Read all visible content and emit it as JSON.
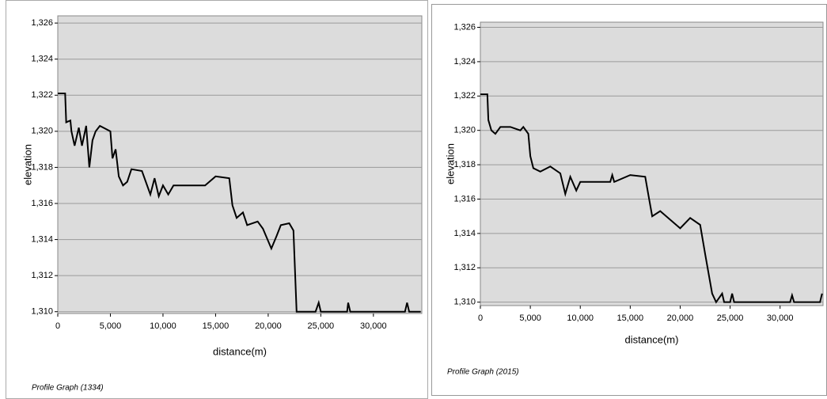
{
  "chart_data": [
    {
      "type": "line",
      "y_label": "elevation",
      "x_label": "distance(m)",
      "caption": "Profile Graph (1334)",
      "color": "#000000",
      "grid": true,
      "xlim": [
        0,
        34600
      ],
      "ylim": [
        1309.9,
        1326.4
      ],
      "xticks": [
        0,
        {
          "value": 5000,
          "label": "5,000"
        },
        {
          "value": 10000,
          "label": "10,000"
        },
        {
          "value": 15000,
          "label": "15,000"
        },
        {
          "value": 20000,
          "label": "20,000"
        },
        {
          "value": 25000,
          "label": "25,000"
        },
        {
          "value": 30000,
          "label": "30,000"
        }
      ],
      "yticks": [
        {
          "value": 1310,
          "label": "1,310"
        },
        {
          "value": 1312,
          "label": "1,312"
        },
        {
          "value": 1314,
          "label": "1,314"
        },
        {
          "value": 1316,
          "label": "1,316"
        },
        {
          "value": 1318,
          "label": "1,318"
        },
        {
          "value": 1320,
          "label": "1,320"
        },
        {
          "value": 1322,
          "label": "1,322"
        },
        {
          "value": 1324,
          "label": "1,324"
        },
        {
          "value": 1326,
          "label": "1,326"
        }
      ],
      "x": [
        0,
        700,
        800,
        1200,
        1300,
        1600,
        2000,
        2300,
        2700,
        3000,
        3300,
        3600,
        4000,
        5000,
        5200,
        5500,
        5800,
        6200,
        6600,
        7000,
        8000,
        8800,
        9200,
        9600,
        10000,
        10500,
        11000,
        14000,
        15000,
        16300,
        16600,
        17000,
        17600,
        18000,
        19000,
        19500,
        20300,
        20800,
        21200,
        22000,
        22400,
        22700,
        24500,
        24800,
        25000,
        27500,
        27600,
        27800,
        33000,
        33200,
        33400,
        34500
      ],
      "values": [
        1322.1,
        1322.1,
        1320.5,
        1320.6,
        1320.0,
        1319.2,
        1320.2,
        1319.2,
        1320.3,
        1318.0,
        1319.5,
        1320.0,
        1320.3,
        1320.0,
        1318.5,
        1319.0,
        1317.5,
        1317.0,
        1317.2,
        1317.9,
        1317.8,
        1316.5,
        1317.4,
        1316.4,
        1317.0,
        1316.5,
        1317.0,
        1317.0,
        1317.5,
        1317.4,
        1315.9,
        1315.2,
        1315.5,
        1314.8,
        1315.0,
        1314.6,
        1313.5,
        1314.2,
        1314.8,
        1314.9,
        1314.5,
        1310.0,
        1310.0,
        1310.5,
        1310.0,
        1310.0,
        1310.5,
        1310.0,
        1310.0,
        1310.5,
        1310.0,
        1310.0
      ]
    },
    {
      "type": "line",
      "y_label": "elevation",
      "x_label": "distance(m)",
      "caption": "Profile Graph (2015)",
      "color": "#000000",
      "grid": true,
      "xlim": [
        0,
        34300
      ],
      "ylim": [
        1309.8,
        1326.3
      ],
      "xticks": [
        0,
        {
          "value": 5000,
          "label": "5,000"
        },
        {
          "value": 10000,
          "label": "10,000"
        },
        {
          "value": 15000,
          "label": "15,000"
        },
        {
          "value": 20000,
          "label": "20,000"
        },
        {
          "value": 25000,
          "label": "25,000"
        },
        {
          "value": 30000,
          "label": "30,000"
        }
      ],
      "yticks": [
        {
          "value": 1310,
          "label": "1,310"
        },
        {
          "value": 1312,
          "label": "1,312"
        },
        {
          "value": 1314,
          "label": "1,314"
        },
        {
          "value": 1316,
          "label": "1,316"
        },
        {
          "value": 1318,
          "label": "1,318"
        },
        {
          "value": 1320,
          "label": "1,320"
        },
        {
          "value": 1322,
          "label": "1,322"
        },
        {
          "value": 1324,
          "label": "1,324"
        },
        {
          "value": 1326,
          "label": "1,326"
        }
      ],
      "x": [
        0,
        700,
        800,
        1100,
        1500,
        2000,
        3000,
        4000,
        4300,
        4800,
        5000,
        5300,
        6000,
        7000,
        8000,
        8500,
        9000,
        9600,
        10000,
        13000,
        13200,
        13400,
        15000,
        16500,
        16800,
        17200,
        18000,
        19000,
        20000,
        21000,
        22000,
        22500,
        23200,
        23600,
        24200,
        24400,
        25000,
        25200,
        25400,
        31000,
        31200,
        31400,
        34000,
        34200
      ],
      "values": [
        1322.1,
        1322.1,
        1320.6,
        1320.0,
        1319.8,
        1320.2,
        1320.2,
        1320.0,
        1320.2,
        1319.8,
        1318.5,
        1317.8,
        1317.6,
        1317.9,
        1317.5,
        1316.3,
        1317.3,
        1316.5,
        1317.0,
        1317.0,
        1317.4,
        1317.0,
        1317.4,
        1317.3,
        1316.3,
        1315.0,
        1315.3,
        1314.8,
        1314.3,
        1314.9,
        1314.5,
        1312.8,
        1310.5,
        1310.0,
        1310.5,
        1310.0,
        1310.0,
        1310.5,
        1310.0,
        1310.0,
        1310.4,
        1310.0,
        1310.0,
        1310.5
      ]
    }
  ]
}
